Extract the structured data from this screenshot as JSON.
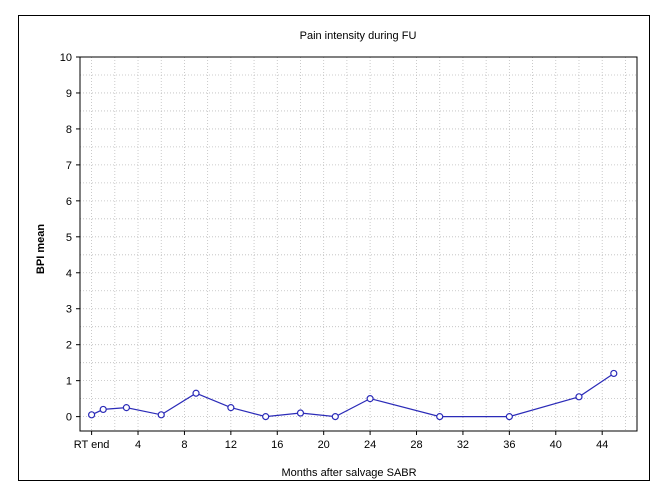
{
  "chart_data": {
    "type": "line",
    "title": "Pain intensity during FU",
    "xlabel": "Months after salvage SABR",
    "ylabel": "BPI mean",
    "xlim": [
      -1,
      47
    ],
    "ylim": [
      -0.4,
      10
    ],
    "x_ticks": [
      0,
      4,
      8,
      12,
      16,
      20,
      24,
      28,
      32,
      36,
      40,
      44
    ],
    "x_tick_labels": [
      "RT end",
      "4",
      "8",
      "12",
      "16",
      "20",
      "24",
      "28",
      "32",
      "36",
      "40",
      "44"
    ],
    "y_ticks": [
      0,
      1,
      2,
      3,
      4,
      5,
      6,
      7,
      8,
      9,
      10
    ],
    "grid": true,
    "series": [
      {
        "color": "#2b2bb8",
        "x": [
          0,
          1,
          3,
          6,
          9,
          12,
          15,
          18,
          21,
          24,
          30,
          36,
          42,
          45
        ],
        "y": [
          0.05,
          0.2,
          0.25,
          0.05,
          0.65,
          0.25,
          0.0,
          0.1,
          0.0,
          0.5,
          0.0,
          0.0,
          0.55,
          1.2
        ]
      }
    ]
  }
}
